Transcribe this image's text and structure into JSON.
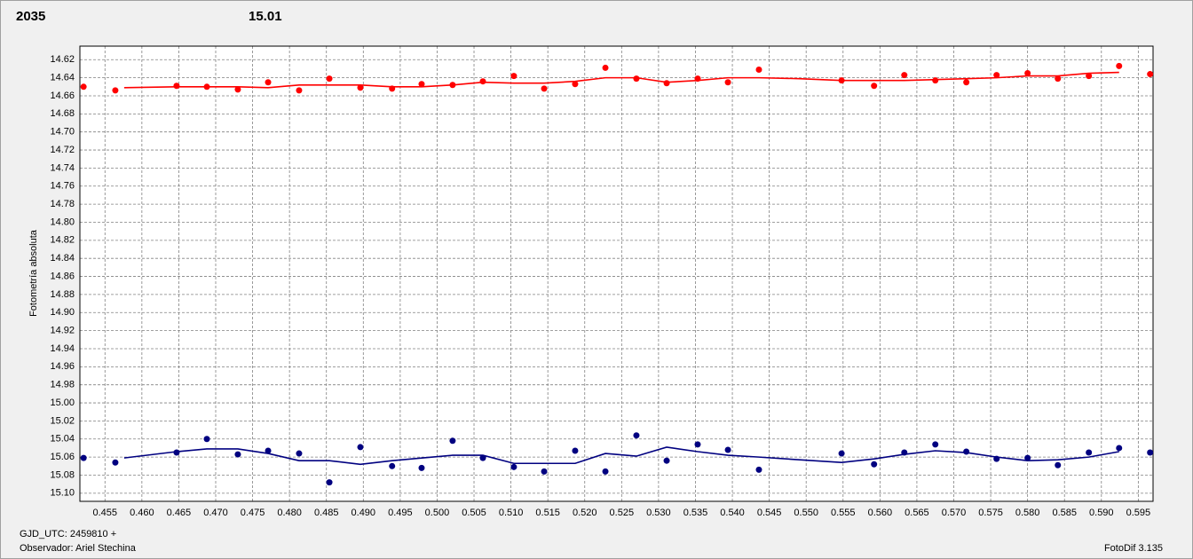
{
  "chart_data": {
    "type": "scatter",
    "y_label": "Fotometría absoluta",
    "x_label": "GJD_UTC: 2459810 +",
    "observer": "Observador: Ariel Stechina",
    "software": "FotoDif 3.135",
    "xlim": [
      0.4516,
      0.597
    ],
    "ylim": [
      14.605,
      15.109
    ],
    "y_inverted": true,
    "grid": true,
    "xticks": [
      0.455,
      {
        "value": 0.46,
        "label": "0.460"
      },
      0.465,
      {
        "value": 0.47,
        "label": "0.470"
      },
      0.475,
      {
        "value": 0.48,
        "label": "0.480"
      },
      0.485,
      {
        "value": 0.49,
        "label": "0.490"
      },
      0.495,
      {
        "value": 0.5,
        "label": "0.500"
      },
      0.505,
      {
        "value": 0.51,
        "label": "0.510"
      },
      0.515,
      {
        "value": 0.52,
        "label": "0.520"
      },
      0.525,
      {
        "value": 0.53,
        "label": "0.530"
      },
      0.535,
      {
        "value": 0.54,
        "label": "0.540"
      },
      0.545,
      {
        "value": 0.55,
        "label": "0.550"
      },
      0.555,
      {
        "value": 0.56,
        "label": "0.560"
      },
      0.565,
      {
        "value": 0.57,
        "label": "0.570"
      },
      0.575,
      {
        "value": 0.58,
        "label": "0.580"
      },
      0.585,
      {
        "value": 0.59,
        "label": "0.590"
      },
      0.595
    ],
    "yticks": [
      14.62,
      14.64,
      14.66,
      14.68,
      {
        "value": 14.7,
        "label": "14.70"
      },
      14.72,
      14.74,
      14.76,
      14.78,
      {
        "value": 14.8,
        "label": "14.80"
      },
      14.82,
      14.84,
      14.86,
      14.88,
      {
        "value": 14.9,
        "label": "14.90"
      },
      14.92,
      14.94,
      14.96,
      14.98,
      {
        "value": 15.0,
        "label": "15.00"
      },
      15.02,
      15.04,
      15.06,
      15.08,
      {
        "value": 15.1,
        "label": "15.10"
      }
    ],
    "x": [
      0.4521,
      0.4564,
      0.4647,
      0.4688,
      0.473,
      0.4771,
      0.4813,
      0.4854,
      0.4896,
      0.4939,
      0.4979,
      0.5021,
      0.5062,
      0.5104,
      0.5145,
      0.5187,
      0.5228,
      0.527,
      0.5311,
      0.5353,
      0.5394,
      0.5436,
      0.5548,
      0.5592,
      0.5633,
      0.5675,
      0.5717,
      0.5758,
      0.58,
      0.5841,
      0.5883,
      0.5924,
      0.5966
    ],
    "series": [
      {
        "name": "2035",
        "color": "#ff0000",
        "values": [
          14.65,
          14.654,
          14.649,
          14.65,
          14.653,
          14.645,
          14.654,
          14.641,
          14.651,
          14.652,
          14.647,
          14.648,
          14.644,
          14.638,
          14.652,
          14.647,
          14.629,
          14.641,
          14.646,
          14.641,
          14.645,
          14.631,
          14.643,
          14.649,
          14.637,
          14.643,
          14.645,
          14.637,
          14.635,
          14.641,
          14.638,
          14.627,
          14.636
        ],
        "trend": {
          "x": [
            0.4576,
            0.4647,
            0.4688,
            0.473,
            0.4771,
            0.4813,
            0.4854,
            0.4896,
            0.4939,
            0.4979,
            0.5021,
            0.5062,
            0.5104,
            0.5145,
            0.5187,
            0.5228,
            0.527,
            0.5311,
            0.5353,
            0.5394,
            0.5436,
            0.5491,
            0.5548,
            0.5592,
            0.5633,
            0.5675,
            0.5717,
            0.5758,
            0.58,
            0.5841,
            0.5883,
            0.5924
          ],
          "values": [
            14.651,
            14.65,
            14.65,
            14.65,
            14.651,
            14.648,
            14.648,
            14.648,
            14.65,
            14.65,
            14.648,
            14.645,
            14.646,
            14.646,
            14.644,
            14.64,
            14.64,
            14.645,
            14.643,
            14.64,
            14.64,
            14.641,
            14.643,
            14.643,
            14.643,
            14.642,
            14.641,
            14.64,
            14.638,
            14.638,
            14.635,
            14.634
          ]
        }
      },
      {
        "name": "15.01",
        "color": "#000080",
        "values": [
          15.061,
          15.066,
          15.055,
          15.04,
          15.057,
          15.053,
          15.056,
          15.088,
          15.049,
          15.07,
          15.072,
          15.042,
          15.061,
          15.071,
          15.076,
          15.053,
          15.076,
          15.036,
          15.064,
          15.046,
          15.052,
          15.074,
          15.056,
          15.068,
          15.055,
          15.046,
          15.054,
          15.062,
          15.061,
          15.069,
          15.055,
          15.05,
          15.055
        ],
        "trend": {
          "x": [
            0.4576,
            0.4647,
            0.4688,
            0.473,
            0.4771,
            0.4813,
            0.4854,
            0.4896,
            0.4939,
            0.4979,
            0.5021,
            0.5062,
            0.5104,
            0.5145,
            0.5187,
            0.5228,
            0.527,
            0.5311,
            0.5353,
            0.5394,
            0.5436,
            0.5491,
            0.5548,
            0.5592,
            0.5633,
            0.5675,
            0.5717,
            0.5758,
            0.58,
            0.5841,
            0.5883,
            0.5924
          ],
          "values": [
            15.061,
            15.054,
            15.051,
            15.051,
            15.056,
            15.064,
            15.064,
            15.068,
            15.064,
            15.061,
            15.058,
            15.058,
            15.067,
            15.067,
            15.067,
            15.056,
            15.059,
            15.049,
            15.054,
            15.058,
            15.06,
            15.063,
            15.066,
            15.062,
            15.057,
            15.053,
            15.055,
            15.06,
            15.064,
            15.063,
            15.06,
            15.054
          ]
        }
      }
    ]
  }
}
